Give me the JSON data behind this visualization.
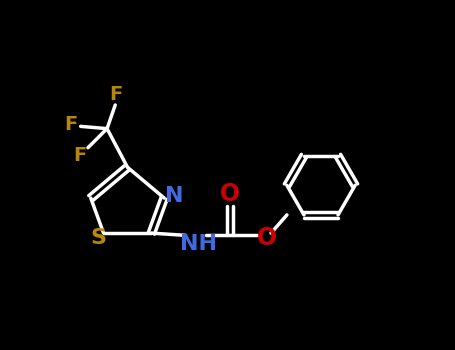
{
  "background_color": "#000000",
  "bond_color": "#FFFFFF",
  "S_color": "#B8860B",
  "N_color": "#4169E1",
  "O_color": "#CC0000",
  "F_color": "#B8860B",
  "font_size": 14,
  "label_font_size": 16,
  "lw": 2.5,
  "xlim": [
    0,
    10
  ],
  "ylim": [
    0,
    7.7
  ]
}
